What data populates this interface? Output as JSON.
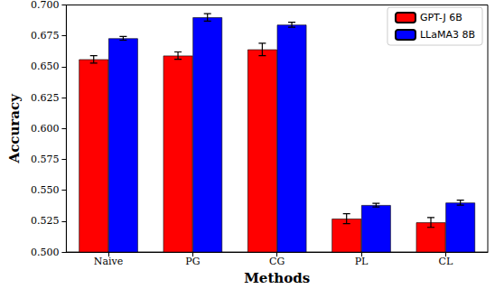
{
  "chart_data": {
    "type": "bar",
    "x_label": "Methods",
    "y_label": "Accuracy",
    "categories": [
      "Naive",
      "PG",
      "CG",
      "PL",
      "CL"
    ],
    "series": [
      {
        "name": "GPT-J 6B",
        "color": "#ff0000",
        "values": [
          0.656,
          0.659,
          0.664,
          0.527,
          0.524
        ],
        "errors": [
          0.003,
          0.003,
          0.005,
          0.004,
          0.004
        ]
      },
      {
        "name": "LLaMA3 8B",
        "color": "#0000ff",
        "values": [
          0.673,
          0.69,
          0.684,
          0.538,
          0.54
        ],
        "errors": [
          0.0015,
          0.003,
          0.002,
          0.0015,
          0.002
        ]
      }
    ],
    "ylim": [
      0.5,
      0.7
    ],
    "yticks": [
      {
        "value": 0.5,
        "label": "0.500"
      },
      {
        "value": 0.525,
        "label": "0.525"
      },
      {
        "value": 0.55,
        "label": "0.550"
      },
      {
        "value": 0.575,
        "label": "0.575"
      },
      {
        "value": 0.6,
        "label": "0.600"
      },
      {
        "value": 0.625,
        "label": "0.625"
      },
      {
        "value": 0.65,
        "label": "0.650"
      },
      {
        "value": 0.675,
        "label": "0.675"
      },
      {
        "value": 0.7,
        "label": "0.700"
      }
    ],
    "legend": "upper right",
    "grid": false
  }
}
